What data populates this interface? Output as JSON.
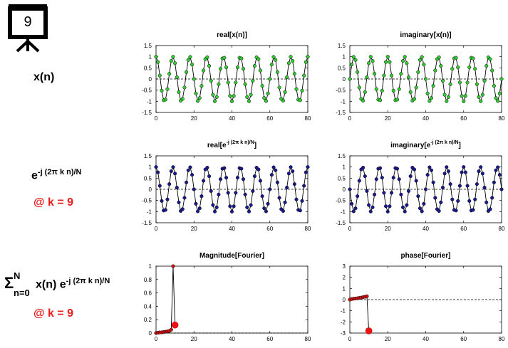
{
  "slide_number": "9",
  "left_labels": {
    "x_signal": "x(n)",
    "exp_base": "e",
    "exp_sup": "-j (2π k n)/N",
    "k_note_1": "@ k = 9",
    "sum_symbol": "Σ",
    "sum_upper": "N",
    "sum_lower": "n=0",
    "sum_body": "x(n) e",
    "sum_sup": "-j (2π k n)/N",
    "k_note_2": "@ k = 9"
  },
  "colors": {
    "green_marker": "#2ecc2e",
    "blue_marker": "#1a1a8c",
    "red_marker": "#cc1111",
    "accent_red": "#ee1c1c"
  },
  "chart_data": [
    {
      "id": "real-x",
      "type": "line",
      "title": "real[x(n)]",
      "xlim": [
        0,
        80
      ],
      "ylim": [
        -1.5,
        1.5
      ],
      "xticks": [
        "0",
        "20",
        "40",
        "60",
        "80"
      ],
      "yticks": [
        "1.5",
        "1",
        "0.5",
        "0",
        "-0.5",
        "-1",
        "-1.5"
      ],
      "formula": "cos(2*pi*9*n/80)",
      "n": [
        0,
        80
      ],
      "marker_color": "green"
    },
    {
      "id": "imag-x",
      "type": "line",
      "title": "imaginary[x(n)]",
      "xlim": [
        0,
        80
      ],
      "ylim": [
        -1.5,
        1.5
      ],
      "xticks": [
        "0",
        "20",
        "40",
        "60",
        "80"
      ],
      "yticks": [
        "1.5",
        "1",
        "0.5",
        "0",
        "-0.5",
        "-1",
        "-1.5"
      ],
      "formula": "sin(2*pi*9*n/80)",
      "n": [
        0,
        80
      ],
      "marker_color": "green"
    },
    {
      "id": "real-e",
      "type": "line",
      "title_main": "real[e",
      "title_sup": "-j (2π k n)/N",
      "title_end": "]",
      "xlim": [
        0,
        80
      ],
      "ylim": [
        -1.5,
        1.5
      ],
      "xticks": [
        "0",
        "20",
        "40",
        "60",
        "80"
      ],
      "yticks": [
        "1.5",
        "1",
        "0.5",
        "0",
        "-0.5",
        "-1",
        "-1.5"
      ],
      "formula": "cos(2*pi*9*n/80)",
      "n": [
        0,
        80
      ],
      "marker_color": "blue"
    },
    {
      "id": "imag-e",
      "type": "line",
      "title_main": "imaginary[e",
      "title_sup": "-j (2π k n)/N",
      "title_end": "]",
      "xlim": [
        0,
        80
      ],
      "ylim": [
        -1.5,
        1.5
      ],
      "xticks": [
        "0",
        "20",
        "40",
        "60",
        "80"
      ],
      "yticks": [
        "1.5",
        "1",
        "0.5",
        "0",
        "-0.5",
        "-1",
        "-1.5"
      ],
      "formula": "-sin(2*pi*9*n/80)",
      "n": [
        0,
        80
      ],
      "marker_color": "blue"
    },
    {
      "id": "mag",
      "type": "line",
      "title": "Magnitude[Fourier]",
      "xlim": [
        0,
        80
      ],
      "ylim": [
        0,
        1
      ],
      "xticks": [
        "0",
        "20",
        "40",
        "60",
        "80"
      ],
      "yticks": [
        "1",
        "0.8",
        "0.6",
        "0.4",
        "0.2",
        "0"
      ],
      "x": [
        0,
        1,
        2,
        3,
        4,
        5,
        6,
        7,
        8,
        9,
        10
      ],
      "values": [
        0.0,
        0.005,
        0.01,
        0.01,
        0.015,
        0.02,
        0.025,
        0.03,
        0.05,
        1.0,
        0.12
      ],
      "highlight_x": 10,
      "highlight_y": 0.12,
      "marker_color": "red"
    },
    {
      "id": "phase",
      "type": "line",
      "title": "phase[Fourier]",
      "xlim": [
        0,
        80
      ],
      "ylim": [
        -3,
        3
      ],
      "xticks": [
        "0",
        "20",
        "40",
        "60",
        "80"
      ],
      "yticks": [
        "3",
        "2",
        "1",
        "0",
        "-1",
        "-2",
        "-3"
      ],
      "x": [
        0,
        1,
        2,
        3,
        4,
        5,
        6,
        7,
        8,
        9,
        10
      ],
      "values": [
        0.0,
        0.05,
        0.08,
        0.1,
        0.12,
        0.15,
        0.18,
        0.22,
        0.25,
        0.3,
        -2.8
      ],
      "highlight_x": 10,
      "highlight_y": -2.8,
      "marker_color": "red"
    }
  ]
}
